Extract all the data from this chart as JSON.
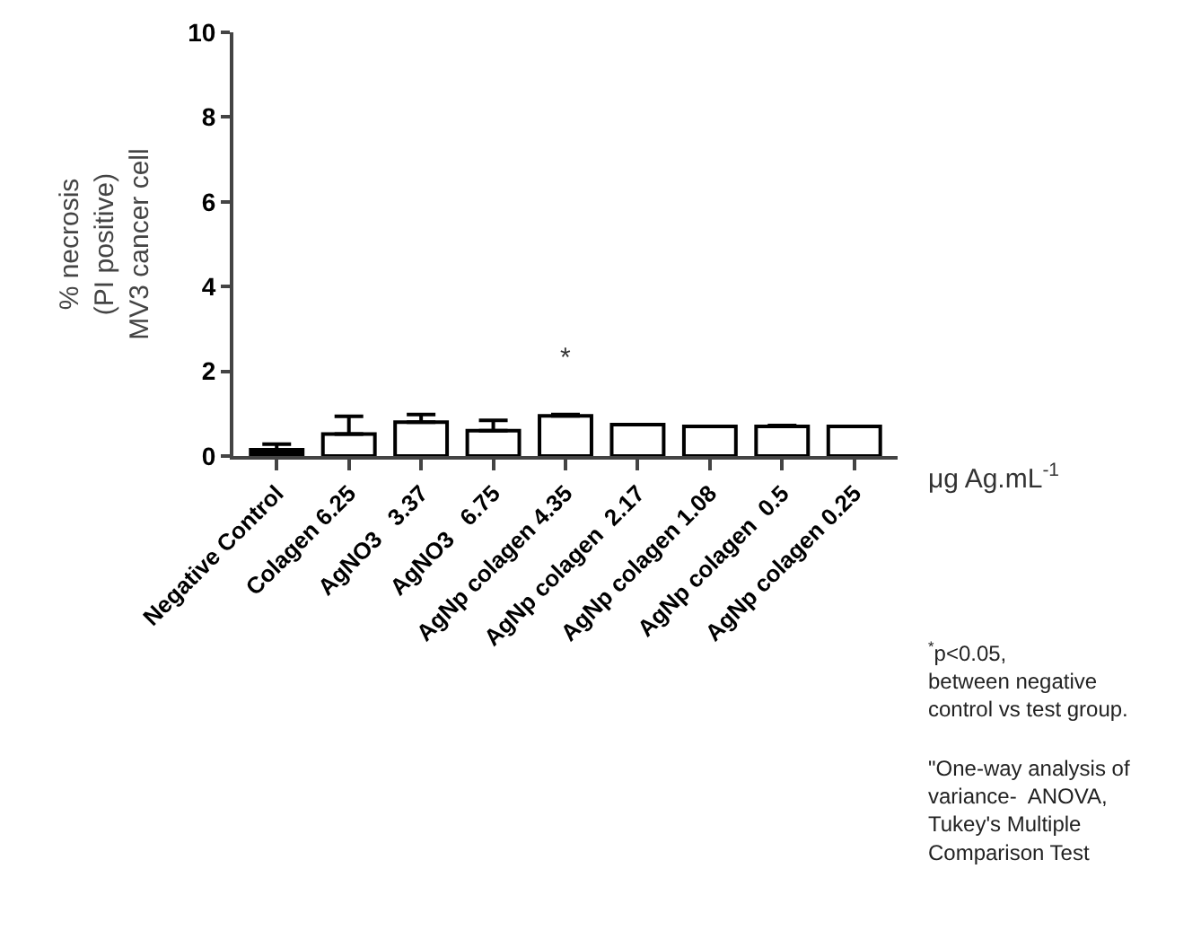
{
  "chart_data": {
    "type": "bar",
    "ylabel": "% necrosis\n(PI positive)\nMV3 cancer cell",
    "xlabel": "μg Ag.mL$^{-1}$",
    "categories": [
      "Negative Control",
      "Colagen 6.25",
      "AgNO3   3.37",
      "AgNO3   6.75",
      "AgNp colagen 4.35",
      "AgNp colagen  2.17",
      "AgNp colagen 1.08",
      "AgNp colagen  0.5",
      "AgNp colagen 0.25"
    ],
    "values": [
      0.15,
      0.52,
      0.8,
      0.6,
      0.95,
      0.74,
      0.7,
      0.7,
      0.7
    ],
    "errors": [
      [
        0.15,
        0.28
      ],
      [
        0.52,
        0.94
      ],
      [
        0.8,
        0.98
      ],
      [
        0.6,
        0.84
      ],
      [
        0.95,
        0.98
      ],
      null,
      null,
      [
        0.7,
        0.72
      ],
      null
    ],
    "colors": [
      "#000000",
      "#ffffff",
      "#ffffff",
      "#ffffff",
      "#ffffff",
      "#ffffff",
      "#ffffff",
      "#ffffff",
      "#ffffff"
    ],
    "ylim": [
      0,
      10
    ],
    "yticks": [
      0,
      2,
      4,
      6,
      8,
      10
    ],
    "grid": false,
    "annotations": [
      "*",
      "$^{*}$p<0.05,\nbetween negative\ncontrol vs test group.",
      "\"One-way analysis of\nvariance-  ANOVA,\nTukey's Multiple\nComparison Test"
    ]
  }
}
